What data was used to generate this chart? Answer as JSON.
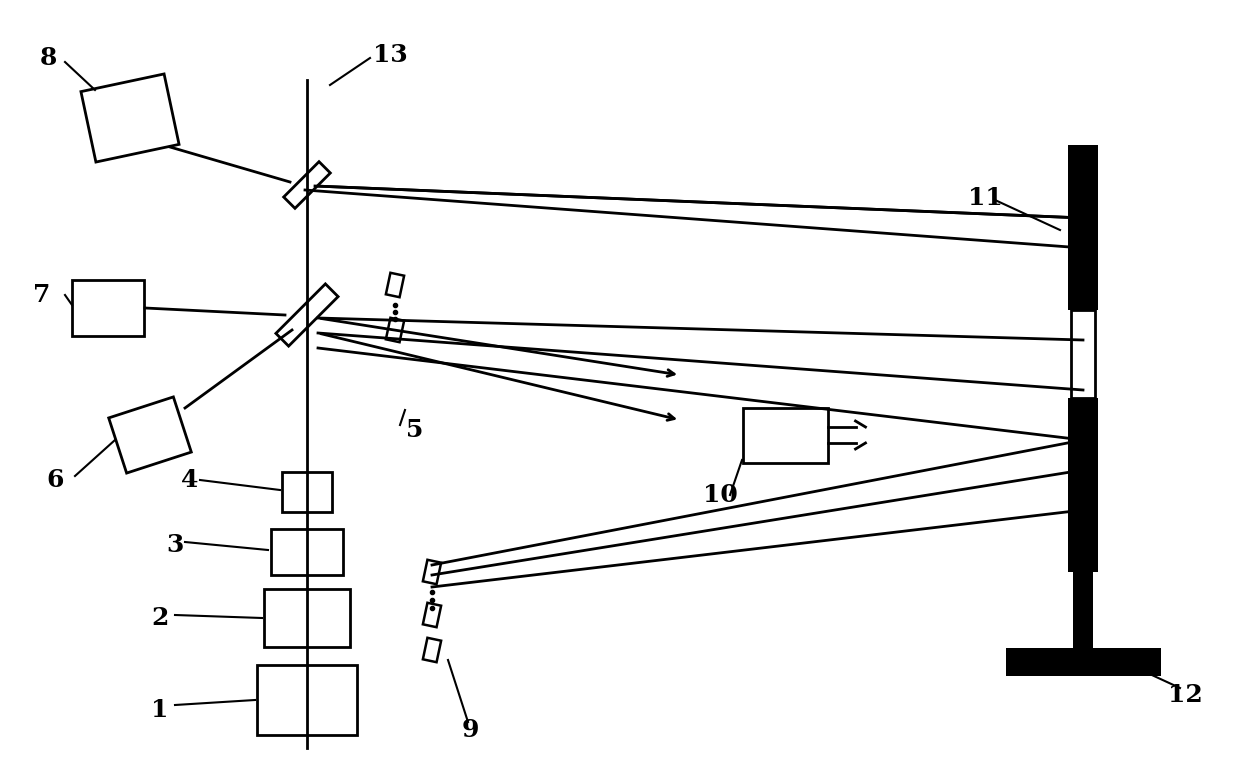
{
  "bg_color": "#ffffff",
  "line_color": "#000000",
  "figsize": [
    12.4,
    7.79
  ],
  "dpi": 100
}
